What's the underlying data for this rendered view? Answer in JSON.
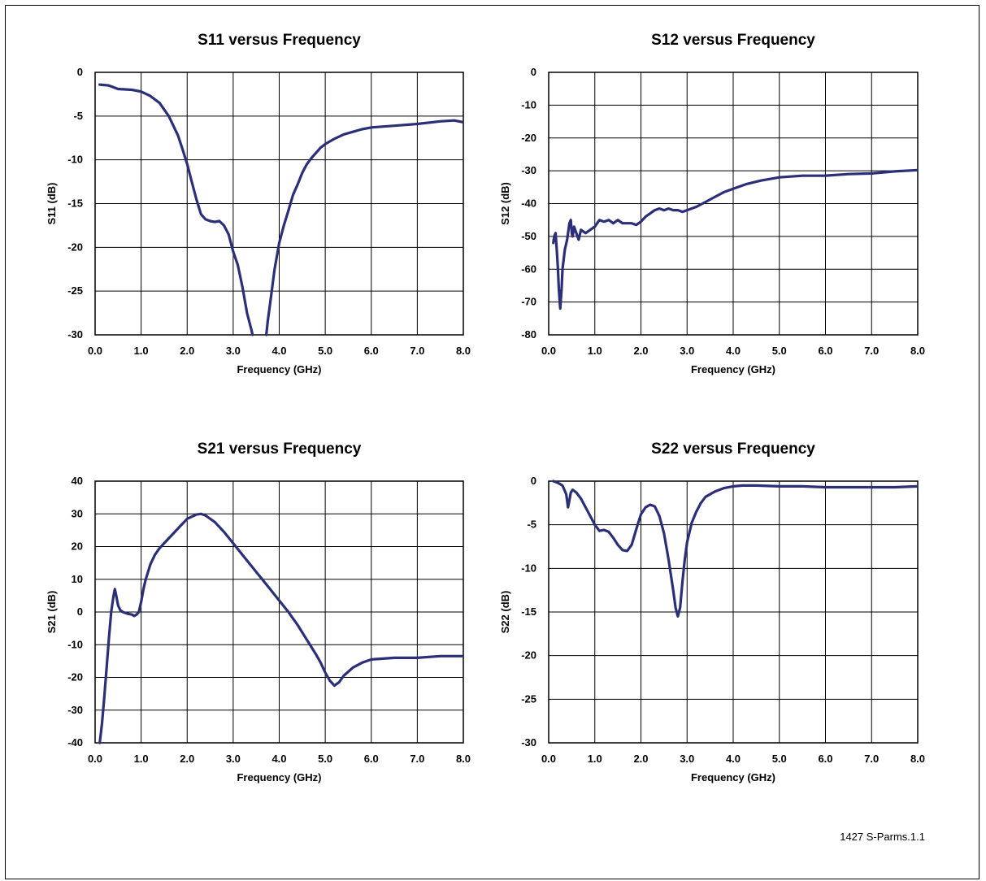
{
  "footer_label": "1427 S-Parms.1.1",
  "line_color": "#2b2f78",
  "chart_data": [
    {
      "type": "line",
      "title": "S11 versus Frequency",
      "xlabel": "Frequency (GHz)",
      "ylabel": "S11 (dB)",
      "xlim": [
        0,
        8
      ],
      "ylim": [
        -30,
        0
      ],
      "xticks": [
        "0.0",
        "1.0",
        "2.0",
        "3.0",
        "4.0",
        "5.0",
        "6.0",
        "7.0",
        "8.0"
      ],
      "yticks": [
        "0",
        "-5",
        "-10",
        "-15",
        "-20",
        "-25",
        "-30"
      ],
      "series": [
        {
          "x": [
            0.1,
            0.3,
            0.5,
            0.8,
            1.0,
            1.2,
            1.4,
            1.6,
            1.8,
            1.9,
            2.0,
            2.1,
            2.2,
            2.3,
            2.4,
            2.5,
            2.6,
            2.7,
            2.8,
            2.9,
            3.0,
            3.1,
            3.2,
            3.3,
            3.4,
            3.42
          ],
          "y": [
            -1.4,
            -1.5,
            -1.9,
            -2.0,
            -2.2,
            -2.7,
            -3.5,
            -5.0,
            -7.2,
            -8.8,
            -10.5,
            -12.5,
            -14.5,
            -16.2,
            -16.8,
            -17.0,
            -17.1,
            -17.0,
            -17.5,
            -18.5,
            -20.5,
            -22.0,
            -24.5,
            -27.5,
            -29.5,
            -30.0
          ]
        },
        {
          "x": [
            3.72,
            3.75,
            3.8,
            3.85,
            3.9,
            4.0,
            4.1,
            4.2,
            4.3,
            4.4,
            4.5,
            4.6,
            4.7,
            4.8,
            4.9,
            5.0,
            5.2,
            5.4,
            5.6,
            5.8,
            6.0,
            6.5,
            7.0,
            7.5,
            7.8,
            8.0
          ],
          "y": [
            -30.0,
            -28.5,
            -26.5,
            -24.5,
            -22.5,
            -19.5,
            -17.5,
            -15.8,
            -14.0,
            -12.8,
            -11.5,
            -10.5,
            -9.8,
            -9.2,
            -8.6,
            -8.2,
            -7.6,
            -7.1,
            -6.8,
            -6.5,
            -6.3,
            -6.1,
            -5.9,
            -5.6,
            -5.5,
            -5.7
          ]
        }
      ]
    },
    {
      "type": "line",
      "title": "S12 versus Frequency",
      "xlabel": "Frequency (GHz)",
      "ylabel": "S12 (dB)",
      "xlim": [
        0,
        8
      ],
      "ylim": [
        -80,
        0
      ],
      "xticks": [
        "0.0",
        "1.0",
        "2.0",
        "3.0",
        "4.0",
        "5.0",
        "6.0",
        "7.0",
        "8.0"
      ],
      "yticks": [
        "0",
        "-10",
        "-20",
        "-30",
        "-40",
        "-50",
        "-60",
        "-70",
        "-80"
      ],
      "series": [
        {
          "x": [
            0.1,
            0.12,
            0.15,
            0.18,
            0.2,
            0.22,
            0.25,
            0.28,
            0.3,
            0.35,
            0.4,
            0.45,
            0.48,
            0.5,
            0.52,
            0.55,
            0.6,
            0.65,
            0.7,
            0.8,
            0.9,
            1.0,
            1.1,
            1.2,
            1.3,
            1.4,
            1.5,
            1.6,
            1.7,
            1.8,
            1.9,
            2.0,
            2.1,
            2.2,
            2.3,
            2.4,
            2.5,
            2.6,
            2.7,
            2.8,
            2.9,
            3.0,
            3.2,
            3.4,
            3.6,
            3.8,
            4.0,
            4.3,
            4.6,
            5.0,
            5.5,
            6.0,
            6.5,
            7.0,
            7.5,
            8.0
          ],
          "y": [
            -52,
            -50,
            -49,
            -55,
            -60,
            -66,
            -72,
            -66,
            -60,
            -54,
            -51,
            -46,
            -45,
            -49,
            -50,
            -47,
            -49,
            -51,
            -48,
            -49,
            -48,
            -47,
            -45,
            -45.5,
            -45,
            -46,
            -45,
            -46,
            -46,
            -46,
            -46.5,
            -45.5,
            -44,
            -43,
            -42,
            -41.5,
            -42,
            -41.5,
            -42,
            -42,
            -42.5,
            -42,
            -41,
            -39.5,
            -38,
            -36.5,
            -35.5,
            -34,
            -33,
            -32,
            -31.5,
            -31.5,
            -31,
            -30.8,
            -30.2,
            -29.8
          ]
        }
      ]
    },
    {
      "type": "line",
      "title": "S21 versus Frequency",
      "xlabel": "Frequency (GHz)",
      "ylabel": "S21 (dB)",
      "xlim": [
        0,
        8
      ],
      "ylim": [
        -40,
        40
      ],
      "xticks": [
        "0.0",
        "1.0",
        "2.0",
        "3.0",
        "4.0",
        "5.0",
        "6.0",
        "7.0",
        "8.0"
      ],
      "yticks": [
        "40",
        "30",
        "20",
        "10",
        "0",
        "-10",
        "-20",
        "-30",
        "-40"
      ],
      "series": [
        {
          "x": [
            0.1,
            0.15,
            0.2,
            0.25,
            0.3,
            0.35,
            0.4,
            0.43,
            0.46,
            0.5,
            0.55,
            0.6,
            0.7,
            0.8,
            0.85,
            0.9,
            0.95,
            1.0,
            1.05,
            1.1,
            1.2,
            1.3,
            1.4,
            1.6,
            1.8,
            2.0,
            2.2,
            2.3,
            2.4,
            2.6,
            2.8,
            3.0,
            3.2,
            3.4,
            3.6,
            3.8,
            4.0,
            4.2,
            4.4,
            4.6,
            4.8,
            4.9,
            5.0,
            5.1,
            5.2,
            5.3,
            5.4,
            5.6,
            5.8,
            6.0,
            6.5,
            7.0,
            7.5,
            8.0
          ],
          "y": [
            -40,
            -34,
            -26,
            -17,
            -8,
            0,
            5,
            7,
            5,
            2,
            0.5,
            0,
            -0.5,
            -0.8,
            -1.2,
            -0.8,
            0,
            3,
            7,
            10,
            14.5,
            17.5,
            19.5,
            22.5,
            25.5,
            28.5,
            29.8,
            30,
            29.5,
            27.5,
            24.5,
            21,
            17.5,
            14,
            10.5,
            7,
            3.5,
            0,
            -4,
            -8.5,
            -13,
            -15.5,
            -18.5,
            -21,
            -22.5,
            -21.5,
            -19.5,
            -17,
            -15.5,
            -14.5,
            -14,
            -14,
            -13.5,
            -13.5
          ]
        }
      ]
    },
    {
      "type": "line",
      "title": "S22 versus Frequency",
      "xlabel": "Frequency (GHz)",
      "ylabel": "S22 (dB)",
      "xlim": [
        0,
        8
      ],
      "ylim": [
        -30,
        0
      ],
      "xticks": [
        "0.0",
        "1.0",
        "2.0",
        "3.0",
        "4.0",
        "5.0",
        "6.0",
        "7.0",
        "8.0"
      ],
      "yticks": [
        "0",
        "-5",
        "-10",
        "-15",
        "-20",
        "-25",
        "-30"
      ],
      "series": [
        {
          "x": [
            0.1,
            0.2,
            0.3,
            0.38,
            0.42,
            0.45,
            0.48,
            0.52,
            0.6,
            0.7,
            0.8,
            0.9,
            1.0,
            1.1,
            1.2,
            1.3,
            1.4,
            1.5,
            1.6,
            1.7,
            1.8,
            1.9,
            2.0,
            2.1,
            2.2,
            2.3,
            2.4,
            2.5,
            2.6,
            2.7,
            2.75,
            2.8,
            2.85,
            2.9,
            2.95,
            3.0,
            3.1,
            3.2,
            3.3,
            3.4,
            3.6,
            3.8,
            4.0,
            4.2,
            4.5,
            5.0,
            5.5,
            6.0,
            6.5,
            7.0,
            7.5,
            8.0
          ],
          "y": [
            0,
            -0.2,
            -0.5,
            -1.5,
            -3.0,
            -2.2,
            -1.3,
            -1.0,
            -1.3,
            -2.0,
            -3.0,
            -4.0,
            -5.0,
            -5.7,
            -5.6,
            -5.8,
            -6.5,
            -7.3,
            -7.9,
            -8.0,
            -7.3,
            -5.5,
            -3.8,
            -3.0,
            -2.7,
            -2.9,
            -4.0,
            -6.0,
            -9.0,
            -12.5,
            -14.5,
            -15.5,
            -14.5,
            -11.5,
            -9.0,
            -7.0,
            -4.8,
            -3.5,
            -2.5,
            -1.8,
            -1.2,
            -0.8,
            -0.6,
            -0.5,
            -0.5,
            -0.6,
            -0.6,
            -0.7,
            -0.7,
            -0.7,
            -0.7,
            -0.6
          ]
        }
      ]
    }
  ]
}
